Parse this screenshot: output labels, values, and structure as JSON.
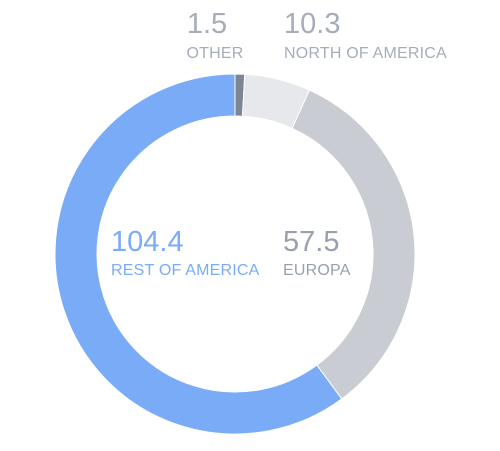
{
  "chart_data": {
    "type": "donut",
    "title": "",
    "slices": [
      {
        "label": "OTHER",
        "value": 1.5,
        "color": "#7d8594"
      },
      {
        "label": "NORTH OF AMERICA",
        "value": 10.3,
        "color": "#e6e8ec"
      },
      {
        "label": "EUROPA",
        "value": 57.5,
        "color": "#c9ccd3"
      },
      {
        "label": "REST OF AMERICA",
        "value": 104.4,
        "color": "#79abf6"
      }
    ],
    "start_angle_deg": 0,
    "direction": "clockwise",
    "label_colors": {
      "OTHER": "#a6acb8",
      "NORTH OF AMERICA": "#a6acb8",
      "EUROPA": "#98a0ad",
      "REST OF AMERICA": "#79abf6"
    }
  }
}
